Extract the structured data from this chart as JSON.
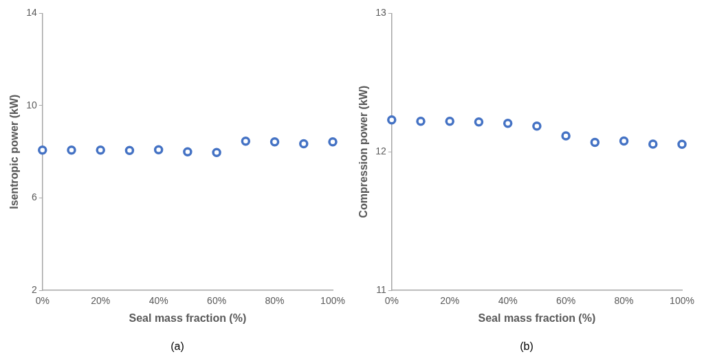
{
  "chart_data": [
    {
      "type": "scatter",
      "xlabel": "Seal mass fraction (%)",
      "ylabel": "Isentropic power (kW)",
      "annotations": [
        "(a)"
      ],
      "x": [
        0,
        10,
        20,
        30,
        40,
        50,
        60,
        70,
        80,
        90,
        100
      ],
      "series": [
        {
          "color": "#4472c4",
          "values": [
            8.07,
            8.07,
            8.07,
            8.06,
            8.09,
            8.0,
            7.97,
            8.46,
            8.43,
            8.35,
            8.43
          ]
        }
      ],
      "xlim": [
        0,
        100
      ],
      "xticks": [
        {
          "value": 0,
          "label": "0%"
        },
        {
          "value": 20,
          "label": "20%"
        },
        {
          "value": 40,
          "label": "40%"
        },
        {
          "value": 60,
          "label": "60%"
        },
        {
          "value": 80,
          "label": "80%"
        },
        {
          "value": 100,
          "label": "100%"
        }
      ],
      "ylim": [
        2,
        14
      ],
      "yticks": [
        2,
        6,
        10,
        14
      ],
      "grid": false,
      "legend": false,
      "marker": "circle"
    },
    {
      "type": "scatter",
      "xlabel": "Seal mass fraction (%)",
      "ylabel": "Compression power (kW)",
      "annotations": [
        "(b)"
      ],
      "x": [
        0,
        10,
        20,
        30,
        40,
        50,
        60,
        70,
        80,
        90,
        100
      ],
      "series": [
        {
          "color": "#4472c4",
          "values": [
            12.23,
            12.22,
            12.22,
            12.215,
            12.205,
            12.186,
            12.115,
            12.068,
            12.078,
            12.056,
            12.054
          ]
        }
      ],
      "xlim": [
        0,
        100
      ],
      "xticks": [
        {
          "value": 0,
          "label": "0%"
        },
        {
          "value": 20,
          "label": "20%"
        },
        {
          "value": 40,
          "label": "40%"
        },
        {
          "value": 60,
          "label": "60%"
        },
        {
          "value": 80,
          "label": "80%"
        },
        {
          "value": 100,
          "label": "100%"
        }
      ],
      "ylim": [
        11,
        13
      ],
      "yticks": [
        11,
        12,
        13
      ],
      "grid": false,
      "legend": false,
      "marker": "circle"
    }
  ]
}
